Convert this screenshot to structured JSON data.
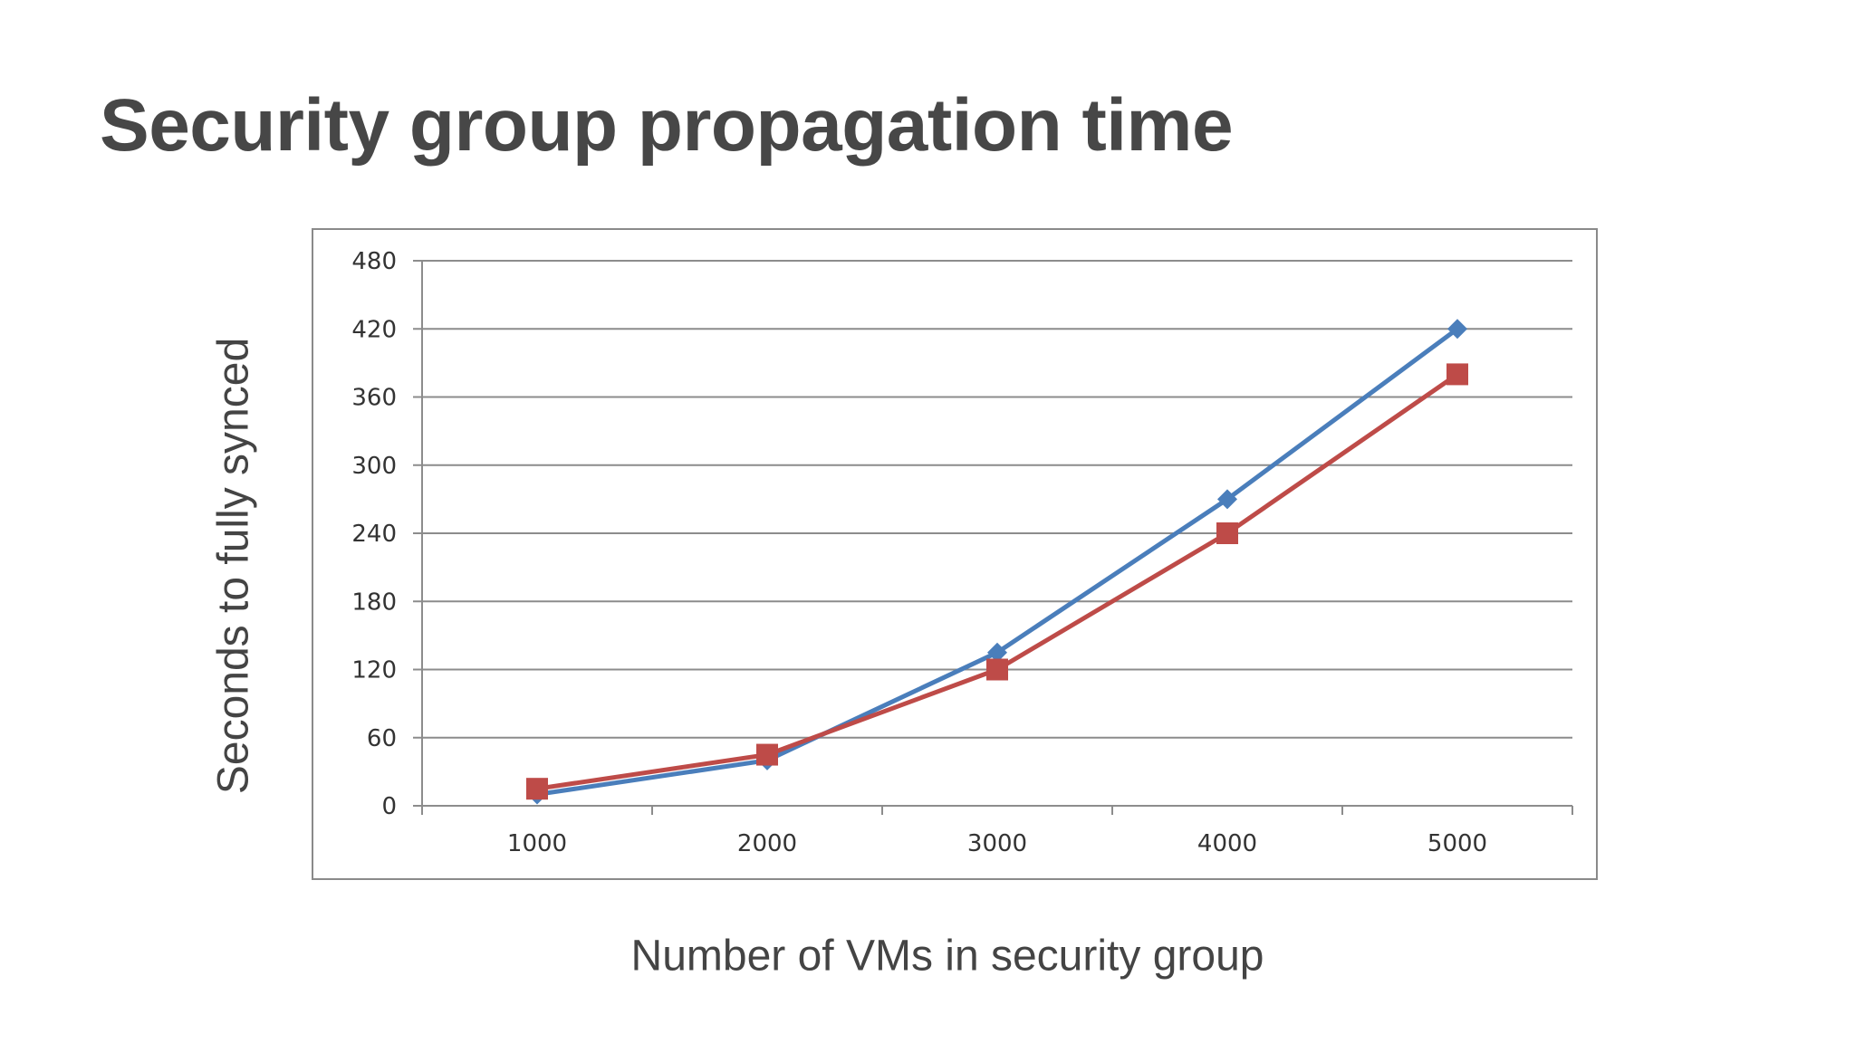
{
  "slide": {
    "title": "Security group propagation time"
  },
  "chart_data": {
    "type": "line",
    "x": [
      1000,
      2000,
      3000,
      4000,
      5000
    ],
    "series": [
      {
        "color": "#4a7ebb",
        "marker": "diamond",
        "values": [
          10,
          40,
          135,
          270,
          420
        ]
      },
      {
        "color": "#be4b48",
        "marker": "square",
        "values": [
          15,
          45,
          120,
          240,
          380
        ]
      }
    ],
    "xlabel": "Number of VMs in security group",
    "ylabel": "Seconds to fully synced",
    "ylim": [
      0,
      480
    ],
    "yticks": [
      0,
      60,
      120,
      180,
      240,
      300,
      360,
      420,
      480
    ],
    "grid": true,
    "legend": "none",
    "colors": {
      "grid": "#8c8c8c",
      "axis": "#8c8c8c",
      "frame": "#8a8a8a"
    }
  }
}
